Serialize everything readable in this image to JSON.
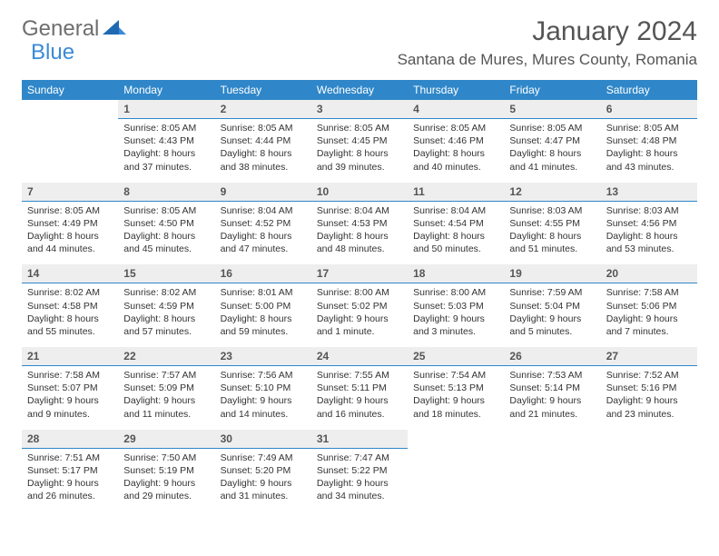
{
  "logo": {
    "general": "General",
    "blue": "Blue"
  },
  "title": "January 2024",
  "location": "Santana de Mures, Mures County, Romania",
  "colors": {
    "header_bg": "#2f87c9",
    "header_fg": "#ffffff",
    "daynum_bg": "#eeeeee",
    "daynum_fg": "#555555",
    "text": "#333333",
    "rule": "#2f87c9",
    "logo_gray": "#6e6e6e",
    "logo_blue": "#3a8bd6"
  },
  "day_names": [
    "Sunday",
    "Monday",
    "Tuesday",
    "Wednesday",
    "Thursday",
    "Friday",
    "Saturday"
  ],
  "weeks": [
    {
      "nums": [
        "",
        "1",
        "2",
        "3",
        "4",
        "5",
        "6"
      ],
      "cells": [
        null,
        {
          "sunrise": "8:05 AM",
          "sunset": "4:43 PM",
          "daylight": "8 hours and 37 minutes."
        },
        {
          "sunrise": "8:05 AM",
          "sunset": "4:44 PM",
          "daylight": "8 hours and 38 minutes."
        },
        {
          "sunrise": "8:05 AM",
          "sunset": "4:45 PM",
          "daylight": "8 hours and 39 minutes."
        },
        {
          "sunrise": "8:05 AM",
          "sunset": "4:46 PM",
          "daylight": "8 hours and 40 minutes."
        },
        {
          "sunrise": "8:05 AM",
          "sunset": "4:47 PM",
          "daylight": "8 hours and 41 minutes."
        },
        {
          "sunrise": "8:05 AM",
          "sunset": "4:48 PM",
          "daylight": "8 hours and 43 minutes."
        }
      ]
    },
    {
      "nums": [
        "7",
        "8",
        "9",
        "10",
        "11",
        "12",
        "13"
      ],
      "cells": [
        {
          "sunrise": "8:05 AM",
          "sunset": "4:49 PM",
          "daylight": "8 hours and 44 minutes."
        },
        {
          "sunrise": "8:05 AM",
          "sunset": "4:50 PM",
          "daylight": "8 hours and 45 minutes."
        },
        {
          "sunrise": "8:04 AM",
          "sunset": "4:52 PM",
          "daylight": "8 hours and 47 minutes."
        },
        {
          "sunrise": "8:04 AM",
          "sunset": "4:53 PM",
          "daylight": "8 hours and 48 minutes."
        },
        {
          "sunrise": "8:04 AM",
          "sunset": "4:54 PM",
          "daylight": "8 hours and 50 minutes."
        },
        {
          "sunrise": "8:03 AM",
          "sunset": "4:55 PM",
          "daylight": "8 hours and 51 minutes."
        },
        {
          "sunrise": "8:03 AM",
          "sunset": "4:56 PM",
          "daylight": "8 hours and 53 minutes."
        }
      ]
    },
    {
      "nums": [
        "14",
        "15",
        "16",
        "17",
        "18",
        "19",
        "20"
      ],
      "cells": [
        {
          "sunrise": "8:02 AM",
          "sunset": "4:58 PM",
          "daylight": "8 hours and 55 minutes."
        },
        {
          "sunrise": "8:02 AM",
          "sunset": "4:59 PM",
          "daylight": "8 hours and 57 minutes."
        },
        {
          "sunrise": "8:01 AM",
          "sunset": "5:00 PM",
          "daylight": "8 hours and 59 minutes."
        },
        {
          "sunrise": "8:00 AM",
          "sunset": "5:02 PM",
          "daylight": "9 hours and 1 minute."
        },
        {
          "sunrise": "8:00 AM",
          "sunset": "5:03 PM",
          "daylight": "9 hours and 3 minutes."
        },
        {
          "sunrise": "7:59 AM",
          "sunset": "5:04 PM",
          "daylight": "9 hours and 5 minutes."
        },
        {
          "sunrise": "7:58 AM",
          "sunset": "5:06 PM",
          "daylight": "9 hours and 7 minutes."
        }
      ]
    },
    {
      "nums": [
        "21",
        "22",
        "23",
        "24",
        "25",
        "26",
        "27"
      ],
      "cells": [
        {
          "sunrise": "7:58 AM",
          "sunset": "5:07 PM",
          "daylight": "9 hours and 9 minutes."
        },
        {
          "sunrise": "7:57 AM",
          "sunset": "5:09 PM",
          "daylight": "9 hours and 11 minutes."
        },
        {
          "sunrise": "7:56 AM",
          "sunset": "5:10 PM",
          "daylight": "9 hours and 14 minutes."
        },
        {
          "sunrise": "7:55 AM",
          "sunset": "5:11 PM",
          "daylight": "9 hours and 16 minutes."
        },
        {
          "sunrise": "7:54 AM",
          "sunset": "5:13 PM",
          "daylight": "9 hours and 18 minutes."
        },
        {
          "sunrise": "7:53 AM",
          "sunset": "5:14 PM",
          "daylight": "9 hours and 21 minutes."
        },
        {
          "sunrise": "7:52 AM",
          "sunset": "5:16 PM",
          "daylight": "9 hours and 23 minutes."
        }
      ]
    },
    {
      "nums": [
        "28",
        "29",
        "30",
        "31",
        "",
        "",
        ""
      ],
      "cells": [
        {
          "sunrise": "7:51 AM",
          "sunset": "5:17 PM",
          "daylight": "9 hours and 26 minutes."
        },
        {
          "sunrise": "7:50 AM",
          "sunset": "5:19 PM",
          "daylight": "9 hours and 29 minutes."
        },
        {
          "sunrise": "7:49 AM",
          "sunset": "5:20 PM",
          "daylight": "9 hours and 31 minutes."
        },
        {
          "sunrise": "7:47 AM",
          "sunset": "5:22 PM",
          "daylight": "9 hours and 34 minutes."
        },
        null,
        null,
        null
      ]
    }
  ],
  "labels": {
    "sunrise": "Sunrise:",
    "sunset": "Sunset:",
    "daylight": "Daylight:"
  }
}
